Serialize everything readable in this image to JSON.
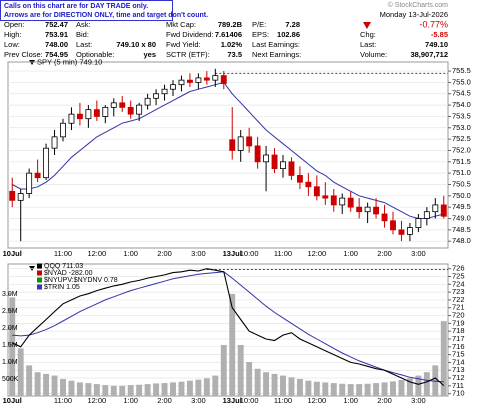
{
  "notice": [
    "Calls on this chart are for DAY TRADE only.",
    "Arrows are for DIRECTION ONLY, time and target don't count."
  ],
  "logo": "© StockCharts.com",
  "quote": {
    "columns": [
      [
        {
          "label": "Open:",
          "value": "752.47"
        },
        {
          "label": "High:",
          "value": "753.91"
        },
        {
          "label": "Low:",
          "value": "748.00"
        },
        {
          "label": "Prev Close:",
          "value": "754.95"
        }
      ],
      [
        {
          "label": "Ask:"
        },
        {
          "label": "Bid:"
        },
        {
          "label": "Last:",
          "value": "749.10 x 80"
        },
        {
          "label": "Optionable:",
          "value": "yes"
        }
      ],
      [
        {
          "label": "Mkt Cap:",
          "value": "789.2B"
        },
        {
          "label": "Fwd Dividend:",
          "value": "7.61406"
        },
        {
          "label": "Fwd Yield:",
          "value": "1.02%"
        },
        {
          "label": "SCTR (ETF):",
          "value": "73.5"
        }
      ],
      [
        {
          "label": "P/E:",
          "value": "7.28"
        },
        {
          "label": "EPS:",
          "value": "102.86"
        },
        {
          "label": "Last Earnings:"
        },
        {
          "label": "Next Earnings:"
        }
      ]
    ],
    "date": "Monday 13-Jul-2026",
    "change_pct": "-0.77%",
    "right": [
      {
        "label": "Chg:",
        "value": "-5.85"
      },
      {
        "label": "Last:",
        "value": "749.10"
      },
      {
        "label": "Volume:",
        "value": "38,907,712"
      }
    ]
  },
  "chart_data": [
    {
      "type": "candlestick",
      "label": "SPY (5 min) 749.10",
      "categories": [
        "10Jul",
        null,
        null,
        null,
        null,
        null,
        "11:00",
        null,
        null,
        null,
        "12:00",
        null,
        null,
        null,
        "1:00",
        null,
        null,
        null,
        "2:00",
        null,
        null,
        null,
        "3:00",
        null,
        null,
        null,
        "13Jul",
        null,
        "10:00",
        null,
        null,
        null,
        "11:00",
        null,
        null,
        null,
        "12:00",
        null,
        null,
        null,
        "1:00",
        null,
        null,
        null,
        "2:00",
        null,
        null,
        null,
        "3:00",
        null,
        null,
        null
      ],
      "open": [
        750.2,
        749.8,
        750.1,
        751.0,
        750.8,
        752.1,
        752.6,
        753.2,
        753.6,
        753.4,
        753.8,
        753.5,
        753.9,
        754.1,
        753.9,
        753.6,
        754.0,
        754.3,
        754.5,
        754.7,
        754.9,
        755.1,
        755.0,
        755.2,
        755.1,
        755.3,
        752.47,
        752.0,
        752.6,
        752.2,
        751.5,
        751.8,
        751.2,
        751.5,
        750.9,
        750.6,
        750.4,
        750.0,
        750.0,
        749.6,
        749.9,
        749.5,
        749.3,
        749.5,
        749.2,
        748.9,
        748.5,
        748.3,
        748.6,
        749.0,
        749.3,
        749.6
      ],
      "high": [
        750.8,
        750.3,
        751.2,
        751.6,
        752.3,
        752.9,
        753.4,
        753.9,
        754.1,
        754.0,
        754.2,
        754.0,
        754.3,
        754.4,
        754.2,
        754.1,
        754.5,
        754.7,
        754.9,
        755.1,
        755.3,
        755.4,
        755.4,
        755.5,
        755.6,
        755.5,
        753.91,
        752.9,
        753.0,
        752.6,
        752.2,
        752.1,
        751.8,
        751.7,
        751.3,
        751.0,
        750.9,
        750.6,
        750.3,
        750.1,
        750.2,
        749.9,
        749.7,
        749.9,
        749.6,
        749.3,
        748.9,
        748.8,
        749.2,
        749.5,
        749.9,
        750.0
      ],
      "low": [
        749.5,
        748.0,
        749.9,
        750.6,
        750.7,
        751.8,
        752.4,
        752.9,
        753.1,
        753.0,
        753.3,
        753.2,
        753.5,
        753.7,
        753.4,
        753.3,
        753.8,
        754.0,
        754.2,
        754.4,
        754.6,
        754.8,
        754.7,
        754.9,
        754.8,
        754.7,
        751.6,
        751.5,
        751.9,
        751.2,
        750.2,
        751.0,
        750.8,
        750.7,
        750.3,
        750.0,
        749.8,
        749.6,
        749.3,
        749.2,
        749.3,
        749.0,
        748.8,
        749.0,
        748.6,
        748.3,
        748.0,
        748.0,
        748.4,
        748.7,
        749.0,
        749.0
      ],
      "close": [
        749.8,
        750.1,
        751.0,
        750.8,
        752.1,
        752.6,
        753.2,
        753.6,
        753.4,
        753.8,
        753.5,
        753.9,
        754.1,
        753.9,
        753.6,
        754.0,
        754.3,
        754.5,
        754.7,
        754.9,
        755.1,
        755.0,
        755.2,
        755.1,
        755.3,
        754.95,
        752.0,
        752.6,
        752.2,
        751.5,
        751.8,
        751.2,
        751.5,
        750.9,
        750.6,
        750.4,
        750.0,
        749.9,
        749.6,
        749.9,
        749.5,
        749.3,
        749.5,
        749.2,
        748.9,
        748.5,
        748.3,
        748.6,
        749.0,
        749.3,
        749.6,
        749.1
      ],
      "up_color": "#000000",
      "down_color": "#cc0000",
      "overlays": [
        {
          "color": "#3333aa",
          "values": [
            750.5,
            750.3,
            750.3,
            750.4,
            750.6,
            750.9,
            751.3,
            751.7,
            752.0,
            752.3,
            752.6,
            752.8,
            753.0,
            753.2,
            753.3,
            753.4,
            753.6,
            753.8,
            754.0,
            754.2,
            754.4,
            754.6,
            754.7,
            754.8,
            754.9,
            755.0,
            754.5,
            754.1,
            753.7,
            753.3,
            752.9,
            752.6,
            752.3,
            752.0,
            751.7,
            751.4,
            751.1,
            750.9,
            750.6,
            750.4,
            750.2,
            750.0,
            749.9,
            749.8,
            749.7,
            749.5,
            749.3,
            749.1,
            749.0,
            749.0,
            749.1,
            749.2
          ]
        }
      ],
      "hline": 755.4,
      "hline_color": "#3333cc",
      "ylim": [
        747.7,
        755.9
      ],
      "yticks": [
        {
          "value": 748,
          "label": "748.0"
        },
        {
          "value": 748.5,
          "label": "748.5"
        },
        {
          "value": 749,
          "label": "749.0"
        },
        {
          "value": 749.5,
          "label": "749.5"
        },
        {
          "value": 750,
          "label": "750.0"
        },
        {
          "value": 750.5,
          "label": "750.5"
        },
        {
          "value": 751,
          "label": "751.0"
        },
        {
          "value": 751.5,
          "label": "751.5"
        },
        {
          "value": 752,
          "label": "752.0"
        },
        {
          "value": 752.5,
          "label": "752.5"
        },
        {
          "value": 753,
          "label": "753.0"
        },
        {
          "value": 753.5,
          "label": "753.5"
        },
        {
          "value": 754,
          "label": "754.0"
        },
        {
          "value": 754.5,
          "label": "754.5"
        },
        {
          "value": 755,
          "label": "755.0"
        },
        {
          "value": 755.5,
          "label": "755.5"
        }
      ],
      "grid": true
    },
    {
      "type": "line",
      "categories": [
        "10Jul",
        null,
        null,
        null,
        null,
        null,
        "11:00",
        null,
        null,
        null,
        "12:00",
        null,
        null,
        null,
        "1:00",
        null,
        null,
        null,
        "2:00",
        null,
        null,
        null,
        "3:00",
        null,
        null,
        null,
        "13Jul",
        null,
        "10:00",
        null,
        null,
        null,
        "11:00",
        null,
        null,
        null,
        "12:00",
        null,
        null,
        null,
        "1:00",
        null,
        null,
        null,
        "2:00",
        null,
        null,
        null,
        "3:00",
        null,
        null,
        null
      ],
      "series": [
        {
          "name": "QQQ 711.03",
          "color": "#000000",
          "axis": "y2",
          "values": [
            716.5,
            716,
            717.5,
            718.5,
            719.5,
            720.5,
            721.5,
            722,
            722.5,
            722.8,
            723.2,
            723.5,
            723.8,
            724,
            724.3,
            724.5,
            724.8,
            725,
            725.2,
            725.5,
            725.6,
            725.8,
            725.7,
            726,
            725.8,
            725.6,
            721,
            719.5,
            718,
            717.5,
            717,
            716.8,
            717.5,
            717.8,
            717,
            716.5,
            716,
            715.5,
            715,
            714.5,
            714,
            713.8,
            713.5,
            713.2,
            713,
            712.5,
            712,
            711.5,
            711.2,
            711.5,
            712,
            711.03
          ]
        },
        {
          "color": "#3333aa",
          "axis": "y2",
          "values": [
            717.5,
            717.4,
            717.5,
            717.8,
            718.2,
            718.7,
            719.3,
            719.9,
            720.5,
            721,
            721.5,
            722,
            722.4,
            722.8,
            723.2,
            723.5,
            723.8,
            724.1,
            724.4,
            724.7,
            724.9,
            725.1,
            725.3,
            725.4,
            725.5,
            725.6,
            724.8,
            723.9,
            723,
            722.1,
            721.2,
            720.4,
            719.7,
            719,
            718.3,
            717.6,
            717,
            716.4,
            715.8,
            715.2,
            714.7,
            714.2,
            713.8,
            713.4,
            713,
            712.7,
            712.4,
            712.1,
            711.9,
            711.7,
            711.6,
            711.5
          ]
        }
      ],
      "indicators": [
        {
          "name": "$NYAD -282.00",
          "color": "#cc0000"
        },
        {
          "name": "$NYUPV:$NYDNV 0.78",
          "color": "#009900"
        },
        {
          "name": "$TRIN 1.05",
          "color": "#3333cc"
        }
      ],
      "volume": {
        "color": "#b0b0b0",
        "values": [
          2900000,
          1400000,
          900000,
          700000,
          650000,
          600000,
          500000,
          450000,
          400000,
          380000,
          350000,
          320000,
          300000,
          300000,
          320000,
          330000,
          350000,
          370000,
          380000,
          400000,
          420000,
          450000,
          480000,
          520000,
          600000,
          1500000,
          3000000,
          1500000,
          1000000,
          800000,
          700000,
          650000,
          600000,
          550000,
          500000,
          450000,
          420000,
          400000,
          380000,
          360000,
          350000,
          350000,
          360000,
          380000,
          400000,
          430000,
          470000,
          520000,
          600000,
          700000,
          900000,
          2200000
        ]
      },
      "hline": 725.9,
      "hline_color": "#3333cc",
      "ylim": [
        0,
        3880000
      ],
      "yticks": [
        {
          "value": 500000,
          "label": "500K"
        },
        {
          "value": 1000000,
          "label": "1.0M"
        },
        {
          "value": 1500000,
          "label": "1.5M"
        },
        {
          "value": 2000000,
          "label": "2.0M"
        },
        {
          "value": 2500000,
          "label": "2.5M"
        },
        {
          "value": 3000000,
          "label": "3.0M"
        }
      ],
      "y2lim": [
        709.7,
        726.6
      ],
      "y2ticks": [
        710,
        711,
        712,
        713,
        714,
        715,
        716,
        717,
        718,
        719,
        720,
        721,
        722,
        723,
        724,
        725,
        726
      ],
      "grid": true
    }
  ]
}
